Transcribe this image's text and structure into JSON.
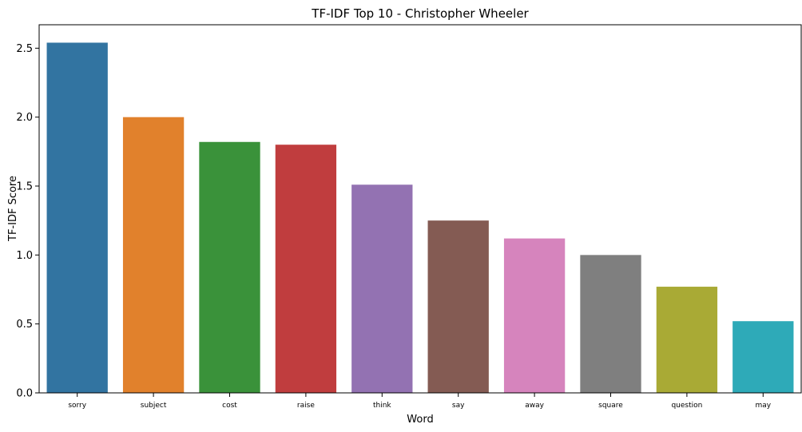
{
  "chart_data": {
    "type": "bar",
    "title": "TF-IDF Top 10 - Christopher Wheeler",
    "xlabel": "Word",
    "ylabel": "TF-IDF Score",
    "categories": [
      "sorry",
      "subject",
      "cost",
      "raise",
      "think",
      "say",
      "away",
      "square",
      "question",
      "may"
    ],
    "values": [
      2.54,
      2.0,
      1.82,
      1.8,
      1.51,
      1.25,
      1.12,
      1.0,
      0.77,
      0.52
    ],
    "colors": [
      "#3274a1",
      "#e1812c",
      "#3a923a",
      "#c03d3e",
      "#9372b2",
      "#845b53",
      "#d684bd",
      "#7f7f7f",
      "#a9aa35",
      "#2eaab8"
    ],
    "ylim": [
      0,
      2.67
    ],
    "yticks": [
      0.0,
      0.5,
      1.0,
      1.5,
      2.0,
      2.5
    ],
    "ytick_labels": [
      "0.0",
      "0.5",
      "1.0",
      "1.5",
      "2.0",
      "2.5"
    ],
    "grid": false,
    "legend": "none"
  }
}
